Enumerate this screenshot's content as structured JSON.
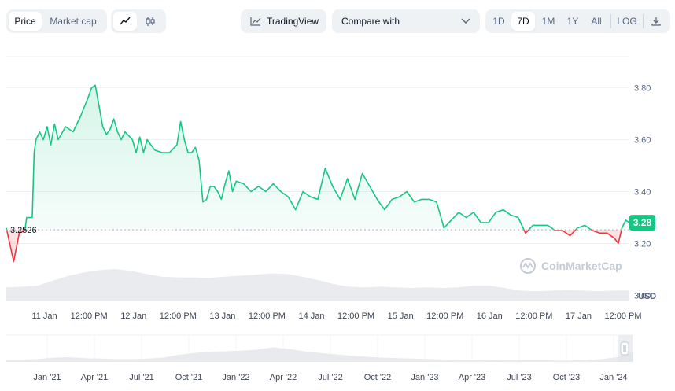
{
  "toolbar": {
    "price_tab": "Price",
    "market_cap_tab": "Market cap",
    "line_icon": "line-chart-icon",
    "candle_icon": "candlestick-icon",
    "tradingview_label": "TradingView",
    "compare_label": "Compare with",
    "ranges": [
      "1D",
      "7D",
      "1M",
      "1Y",
      "All",
      "LOG"
    ],
    "active_range": "7D",
    "download_icon": "download-icon"
  },
  "watermark": "CoinMarketCap",
  "colors": {
    "up": "#16c784",
    "down": "#ea3943",
    "grid": "#eff2f5",
    "volume": "#e6e8ec"
  },
  "chart_data": {
    "type": "line",
    "ylabel_unit": "USD",
    "y_ticks": [
      3.0,
      3.2,
      3.4,
      3.6,
      3.8
    ],
    "ylim": [
      2.98,
      3.92
    ],
    "baseline_value": 3.2526,
    "baseline_label": "3.2526",
    "current_value": 3.28,
    "current_label": "3.28",
    "x_tick_labels": [
      "11 Jan",
      "12:00 PM",
      "12 Jan",
      "12:00 PM",
      "13 Jan",
      "12:00 PM",
      "14 Jan",
      "12:00 PM",
      "15 Jan",
      "12:00 PM",
      "16 Jan",
      "12:00 PM",
      "17 Jan",
      "12:00 PM"
    ],
    "x_tick_hours": [
      12,
      24,
      36,
      48,
      60,
      72,
      84,
      96,
      108,
      120,
      132,
      144,
      156,
      168
    ],
    "x_range_hours": [
      0,
      168
    ],
    "series": [
      {
        "x": [
          0,
          2,
          3.5,
          5,
          5.5,
          7,
          7.5,
          8,
          9,
          10,
          11,
          12,
          13,
          14,
          16,
          18,
          20,
          22,
          23,
          24,
          25,
          26,
          27,
          28,
          29,
          30,
          31,
          32,
          34,
          35,
          36,
          37,
          38,
          40,
          42,
          44,
          46,
          47,
          48,
          49,
          50,
          51,
          52,
          53,
          54,
          55,
          56,
          57,
          58,
          59,
          60,
          61,
          62,
          64,
          66,
          68,
          70,
          72,
          74,
          76,
          78,
          80,
          82,
          84,
          86,
          88,
          90,
          92,
          94,
          96,
          98,
          100,
          102,
          104,
          106,
          108,
          110,
          112,
          114,
          116,
          118,
          120,
          122,
          124,
          126,
          128,
          130,
          132,
          134,
          136,
          138,
          140,
          142,
          144,
          146,
          148,
          150,
          152,
          154,
          156,
          158,
          160,
          162,
          164,
          165,
          166,
          167,
          168
        ],
        "y": [
          3.26,
          3.13,
          3.24,
          3.25,
          3.3,
          3.3,
          3.55,
          3.6,
          3.63,
          3.6,
          3.65,
          3.58,
          3.66,
          3.6,
          3.65,
          3.63,
          3.69,
          3.76,
          3.8,
          3.81,
          3.73,
          3.65,
          3.62,
          3.64,
          3.68,
          3.63,
          3.6,
          3.63,
          3.6,
          3.55,
          3.61,
          3.55,
          3.6,
          3.56,
          3.55,
          3.55,
          3.58,
          3.67,
          3.6,
          3.55,
          3.55,
          3.57,
          3.52,
          3.36,
          3.37,
          3.42,
          3.42,
          3.4,
          3.37,
          3.43,
          3.48,
          3.4,
          3.44,
          3.43,
          3.4,
          3.42,
          3.4,
          3.43,
          3.4,
          3.38,
          3.33,
          3.4,
          3.38,
          3.37,
          3.49,
          3.42,
          3.37,
          3.45,
          3.37,
          3.47,
          3.42,
          3.37,
          3.33,
          3.37,
          3.38,
          3.4,
          3.36,
          3.37,
          3.37,
          3.36,
          3.26,
          3.29,
          3.32,
          3.3,
          3.32,
          3.28,
          3.28,
          3.32,
          3.33,
          3.31,
          3.3,
          3.24,
          3.27,
          3.27,
          3.27,
          3.25,
          3.25,
          3.23,
          3.26,
          3.27,
          3.25,
          3.24,
          3.24,
          3.22,
          3.2,
          3.26,
          3.29,
          3.28
        ]
      }
    ],
    "volume_profile": [
      0.4,
      0.42,
      0.45,
      0.6,
      0.75,
      0.85,
      0.92,
      0.95,
      0.9,
      0.8,
      0.72,
      0.7,
      0.7,
      0.68,
      0.72,
      0.75,
      0.78,
      0.82,
      0.8,
      0.72,
      0.62,
      0.5,
      0.42,
      0.4,
      0.42,
      0.4,
      0.38,
      0.4,
      0.38,
      0.4,
      0.45,
      0.45,
      0.38,
      0.3,
      0.28,
      0.3,
      0.32,
      0.3,
      0.28,
      0.3,
      0.3
    ],
    "navigator": {
      "tick_labels": [
        "Jan '21",
        "Apr '21",
        "Jul '21",
        "Oct '21",
        "Jan '22",
        "Apr '22",
        "Jul '22",
        "Oct '22",
        "Jan '23",
        "Apr '23",
        "Jul '23",
        "Oct '23",
        "Jan '24"
      ],
      "profile": [
        0.1,
        0.1,
        0.12,
        0.18,
        0.2,
        0.16,
        0.14,
        0.12,
        0.12,
        0.14,
        0.18,
        0.3,
        0.38,
        0.42,
        0.45,
        0.48,
        0.52,
        0.62,
        0.55,
        0.45,
        0.38,
        0.32,
        0.26,
        0.22,
        0.18,
        0.16,
        0.14,
        0.12,
        0.1,
        0.08,
        0.08,
        0.1,
        0.08,
        0.07,
        0.07,
        0.06,
        0.06,
        0.08,
        0.12,
        0.2,
        0.42
      ],
      "selection_handle_icon": "drag-handle-icon"
    }
  }
}
